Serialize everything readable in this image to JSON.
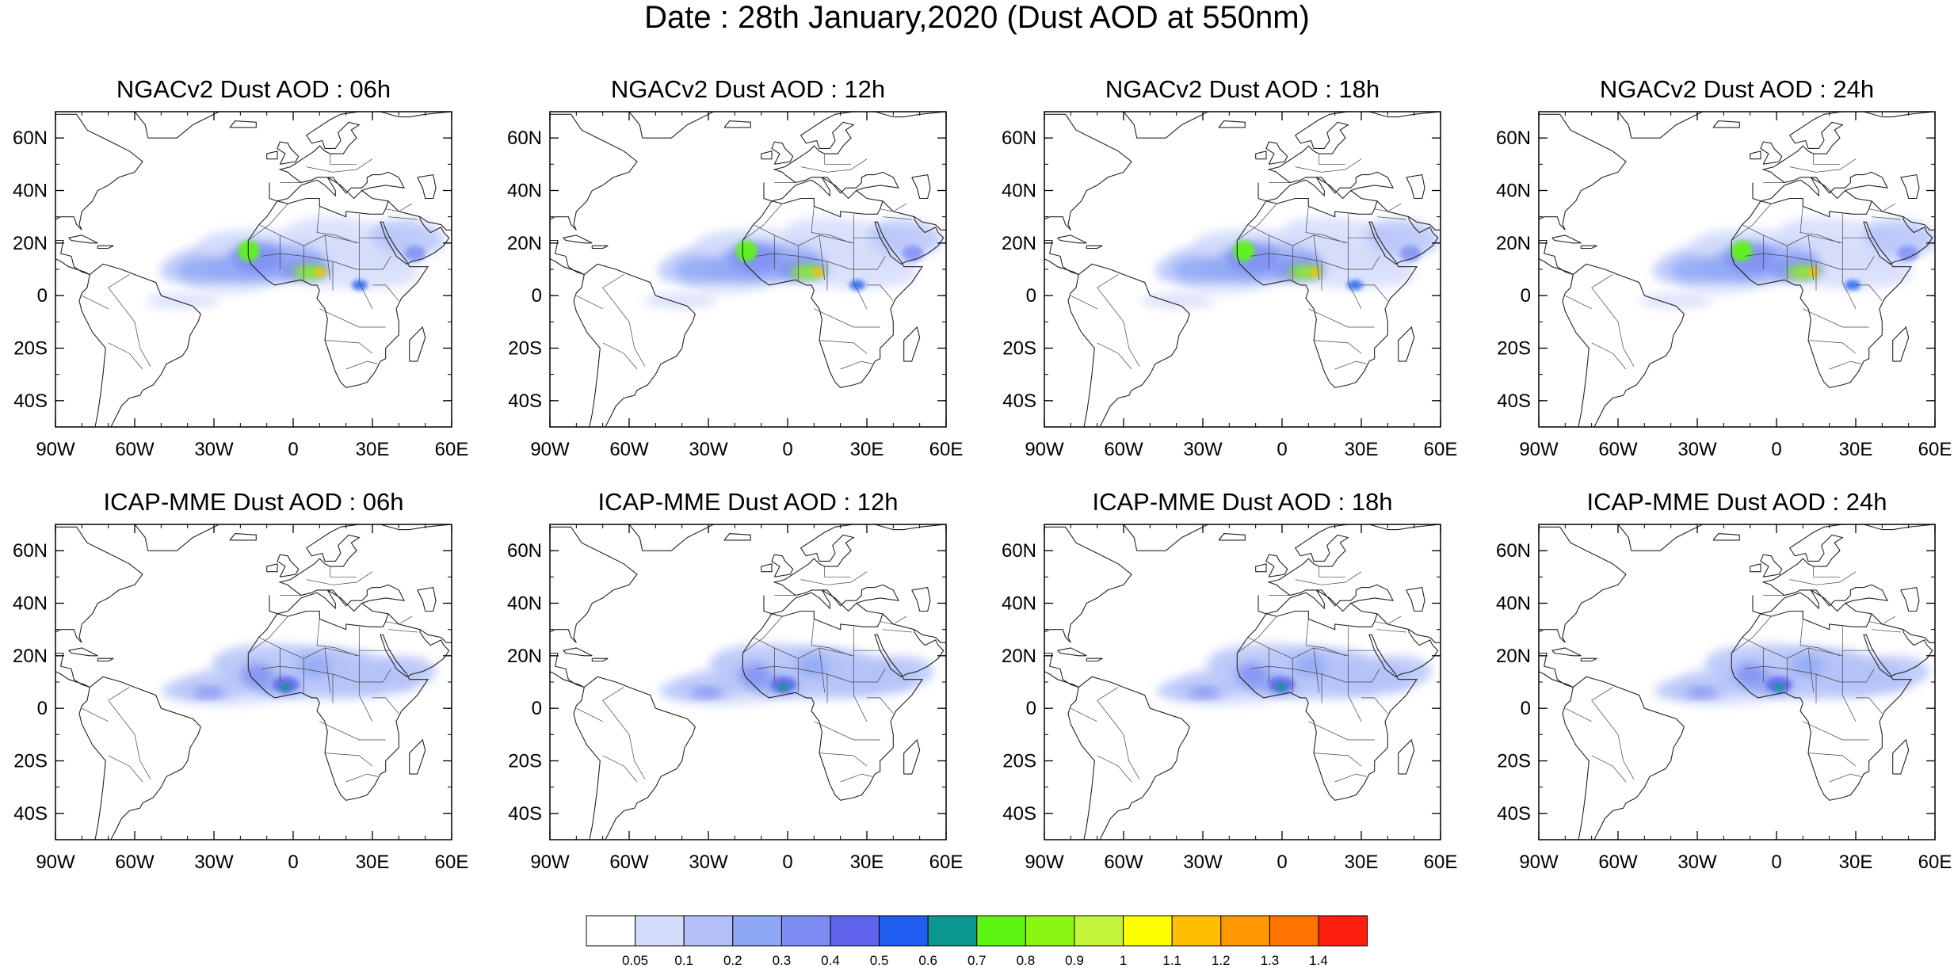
{
  "title": "Date : 28th January,2020 (Dust AOD at 550nm)",
  "panels": [
    {
      "title": "NGACv2 Dust AOD : 06h",
      "model": "NGACv2",
      "hour": "06h"
    },
    {
      "title": "NGACv2 Dust AOD : 12h",
      "model": "NGACv2",
      "hour": "12h"
    },
    {
      "title": "NGACv2 Dust AOD : 18h",
      "model": "NGACv2",
      "hour": "18h"
    },
    {
      "title": "NGACv2 Dust AOD : 24h",
      "model": "NGACv2",
      "hour": "24h"
    },
    {
      "title": "ICAP-MME Dust AOD : 06h",
      "model": "ICAP-MME",
      "hour": "06h"
    },
    {
      "title": "ICAP-MME Dust AOD : 12h",
      "model": "ICAP-MME",
      "hour": "12h"
    },
    {
      "title": "ICAP-MME Dust AOD : 18h",
      "model": "ICAP-MME",
      "hour": "18h"
    },
    {
      "title": "ICAP-MME Dust AOD : 24h",
      "model": "ICAP-MME",
      "hour": "24h"
    }
  ],
  "axes": {
    "lon_range": [
      -90,
      60
    ],
    "lat_range": [
      -50,
      70
    ],
    "lon_ticks": [
      {
        "value": -90,
        "label": "90W"
      },
      {
        "value": -60,
        "label": "60W"
      },
      {
        "value": -30,
        "label": "30W"
      },
      {
        "value": 0,
        "label": "0"
      },
      {
        "value": 30,
        "label": "30E"
      },
      {
        "value": 60,
        "label": "60E"
      }
    ],
    "lat_ticks": [
      {
        "value": 60,
        "label": "60N"
      },
      {
        "value": 40,
        "label": "40N"
      },
      {
        "value": 20,
        "label": "20N"
      },
      {
        "value": 0,
        "label": "0"
      },
      {
        "value": -20,
        "label": "20S"
      },
      {
        "value": -40,
        "label": "40S"
      }
    ]
  },
  "colorbar": {
    "levels": [
      "0.05",
      "0.1",
      "0.2",
      "0.3",
      "0.4",
      "0.5",
      "0.6",
      "0.7",
      "0.8",
      "0.9",
      "1",
      "1.1",
      "1.2",
      "1.3",
      "1.4"
    ],
    "colors": [
      "#ffffff",
      "#d4dcfb",
      "#b3c1f8",
      "#8fa8f5",
      "#7d8df3",
      "#5f63eb",
      "#1f5ef0",
      "#0b9790",
      "#5ef515",
      "#8cf612",
      "#c4f53c",
      "#ffff00",
      "#ffbf00",
      "#ff9800",
      "#ff7300",
      "#ff1f0f"
    ]
  }
}
